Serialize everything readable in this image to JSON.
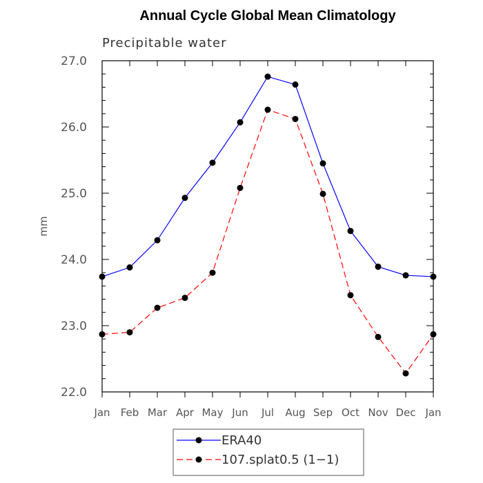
{
  "chart_data": {
    "type": "line",
    "title": "Annual Cycle Global Mean Climatology",
    "subtitle": "Precipitable water",
    "xlabel": "",
    "ylabel": "mm",
    "categories": [
      "Jan",
      "Feb",
      "Mar",
      "Apr",
      "May",
      "Jun",
      "Jul",
      "Aug",
      "Sep",
      "Oct",
      "Nov",
      "Dec",
      "Jan"
    ],
    "ylim": [
      22.0,
      27.0
    ],
    "yticks": [
      22.0,
      23.0,
      24.0,
      25.0,
      26.0,
      27.0
    ],
    "ytick_labels": [
      "22.0",
      "23.0",
      "24.0",
      "25.0",
      "26.0",
      "27.0"
    ],
    "grid": false,
    "legend_position": "bottom-center",
    "series": [
      {
        "name": "ERA40",
        "color": "#0000ff",
        "line_style": "solid",
        "marker": "filled-circle",
        "values": [
          23.74,
          23.88,
          24.29,
          24.93,
          25.46,
          26.07,
          26.76,
          26.64,
          25.45,
          24.43,
          23.89,
          23.76,
          23.74
        ]
      },
      {
        "name": "107.splat0.5 (1−1)",
        "color": "#ff0000",
        "line_style": "dashed",
        "marker": "filled-circle",
        "values": [
          22.87,
          22.9,
          23.27,
          23.42,
          23.8,
          25.08,
          26.26,
          26.12,
          24.99,
          23.46,
          22.83,
          22.28,
          22.87
        ]
      }
    ]
  }
}
